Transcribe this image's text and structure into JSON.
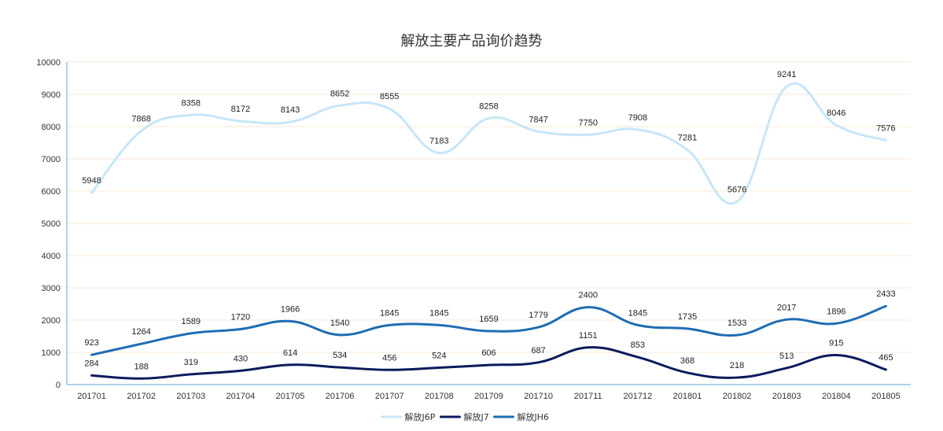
{
  "chart_data": {
    "type": "line",
    "title": "解放主要产品询价趋势",
    "xlabel": "",
    "ylabel": "",
    "ylim": [
      0,
      10000
    ],
    "yticks": [
      0,
      1000,
      2000,
      3000,
      4000,
      5000,
      6000,
      7000,
      8000,
      9000,
      10000
    ],
    "categories": [
      "201701",
      "201702",
      "201703",
      "201704",
      "201705",
      "201706",
      "201707",
      "201708",
      "201709",
      "201710",
      "201711",
      "201712",
      "201801",
      "201802",
      "201803",
      "201804",
      "201805"
    ],
    "series": [
      {
        "name": "解放J6P",
        "color": "#c6e6f7",
        "values": [
          5948,
          7868,
          8358,
          8172,
          8143,
          8652,
          8555,
          7183,
          8258,
          7847,
          7750,
          7908,
          7281,
          5676,
          9241,
          8046,
          7576
        ]
      },
      {
        "name": "解放J7",
        "color": "#0a1a5c",
        "values": [
          284,
          188,
          319,
          430,
          614,
          534,
          456,
          524,
          606,
          687,
          1151,
          853,
          368,
          218,
          513,
          915,
          465
        ]
      },
      {
        "name": "解放JH6",
        "color": "#1f6db3",
        "values": [
          923,
          1264,
          1589,
          1720,
          1966,
          1540,
          1845,
          1845,
          1659,
          1779,
          2400,
          1845,
          1735,
          1533,
          2017,
          1896,
          2433
        ]
      }
    ],
    "grid": true,
    "legend": "bottom-center",
    "smooth": true
  }
}
